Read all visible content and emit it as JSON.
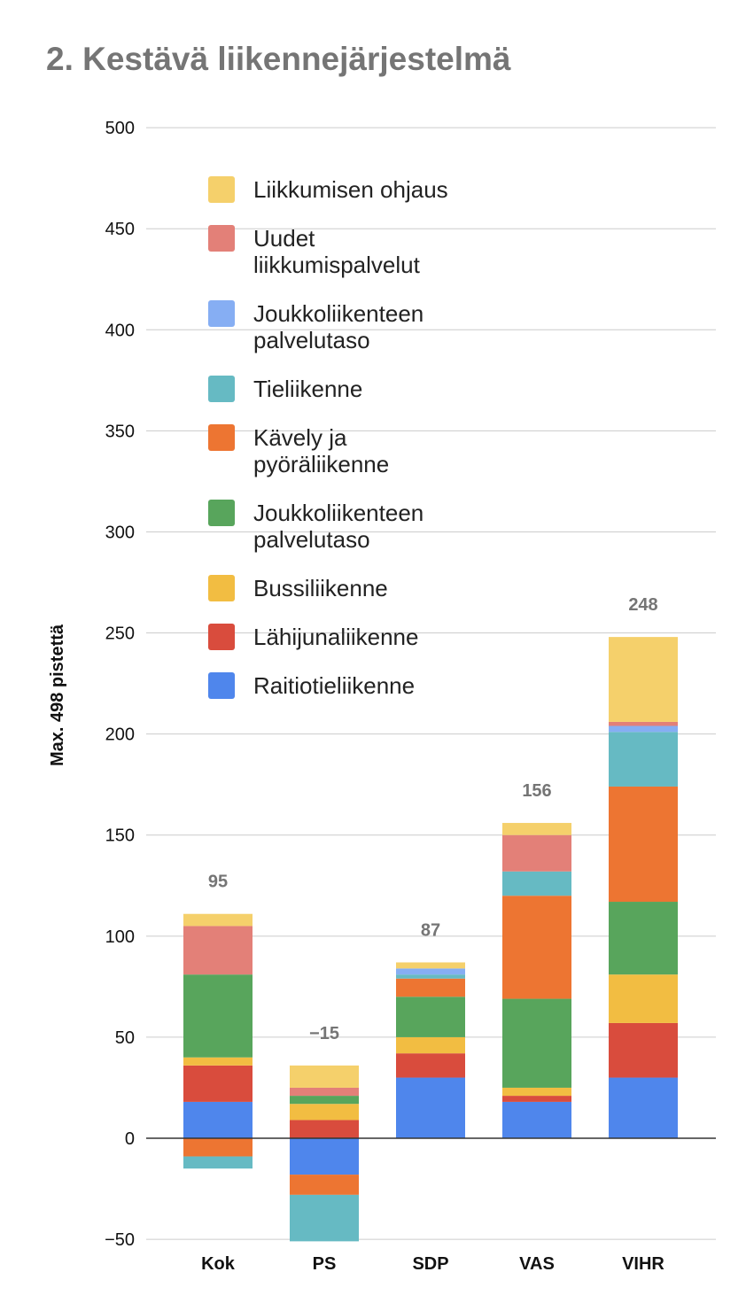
{
  "title": "2. Kestävä liikennejärjestelmä",
  "chart_data": {
    "type": "bar",
    "stacked": true,
    "categories": [
      "Kok",
      "PS",
      "SDP",
      "VAS",
      "VIHR"
    ],
    "totals": [
      "95",
      "−15",
      "87",
      "156",
      "248"
    ],
    "ylabel": "Max. 498 pistettä",
    "ylim": [
      -50,
      500
    ],
    "yticks": [
      -50,
      0,
      50,
      100,
      150,
      200,
      250,
      300,
      350,
      400,
      450,
      500
    ],
    "ytick_labels": [
      "−50",
      "0",
      "50",
      "100",
      "150",
      "200",
      "250",
      "300",
      "350",
      "400",
      "450",
      "500"
    ],
    "grid": true,
    "legend_position": "top-left inside plot",
    "series": [
      {
        "name": "Raitiotieliikenne",
        "color": "#4f86ec",
        "values": [
          18,
          -18,
          30,
          18,
          30
        ]
      },
      {
        "name": "Lähijunaliikenne",
        "color": "#d94c3d",
        "values": [
          18,
          9,
          12,
          3,
          27
        ]
      },
      {
        "name": "Bussiliikenne",
        "color": "#f2bd42",
        "values": [
          4,
          8,
          8,
          4,
          24
        ]
      },
      {
        "name": "Joukkoliikenteen palvelutaso",
        "color": "#58a55c",
        "values": [
          41,
          4,
          20,
          44,
          36
        ]
      },
      {
        "name": "Kävely ja pyöräliikenne",
        "color": "#ed7532",
        "values": [
          -9,
          -10,
          9,
          51,
          57
        ]
      },
      {
        "name": "Tieliikenne",
        "color": "#66bac3",
        "values": [
          -6,
          -23,
          2,
          12,
          27
        ]
      },
      {
        "name": "Joukkoliikenteen palvelutaso",
        "color": "#86aef3",
        "values": [
          0,
          0,
          3,
          0,
          3
        ]
      },
      {
        "name": "Uudet liikkumispalvelut",
        "color": "#e38078",
        "values": [
          24,
          4,
          0,
          18,
          2
        ]
      },
      {
        "name": "Liikkumisen ohjaus",
        "color": "#f5d06b",
        "values": [
          6,
          11,
          3,
          6,
          42
        ]
      }
    ],
    "legend": [
      {
        "label_lines": [
          "Liikkumisen ohjaus"
        ],
        "color": "#f5d06b"
      },
      {
        "label_lines": [
          "Uudet",
          "liikkumispalvelut"
        ],
        "color": "#e38078"
      },
      {
        "label_lines": [
          "Joukkoliikenteen",
          "palvelutaso"
        ],
        "color": "#86aef3"
      },
      {
        "label_lines": [
          "Tieliikenne"
        ],
        "color": "#66bac3"
      },
      {
        "label_lines": [
          "Kävely ja",
          "pyöräliikenne"
        ],
        "color": "#ed7532"
      },
      {
        "label_lines": [
          "Joukkoliikenteen",
          "palvelutaso"
        ],
        "color": "#58a55c"
      },
      {
        "label_lines": [
          "Bussiliikenne"
        ],
        "color": "#f2bd42"
      },
      {
        "label_lines": [
          "Lähijunaliikenne"
        ],
        "color": "#d94c3d"
      },
      {
        "label_lines": [
          "Raitiotieliikenne"
        ],
        "color": "#4f86ec"
      }
    ]
  }
}
